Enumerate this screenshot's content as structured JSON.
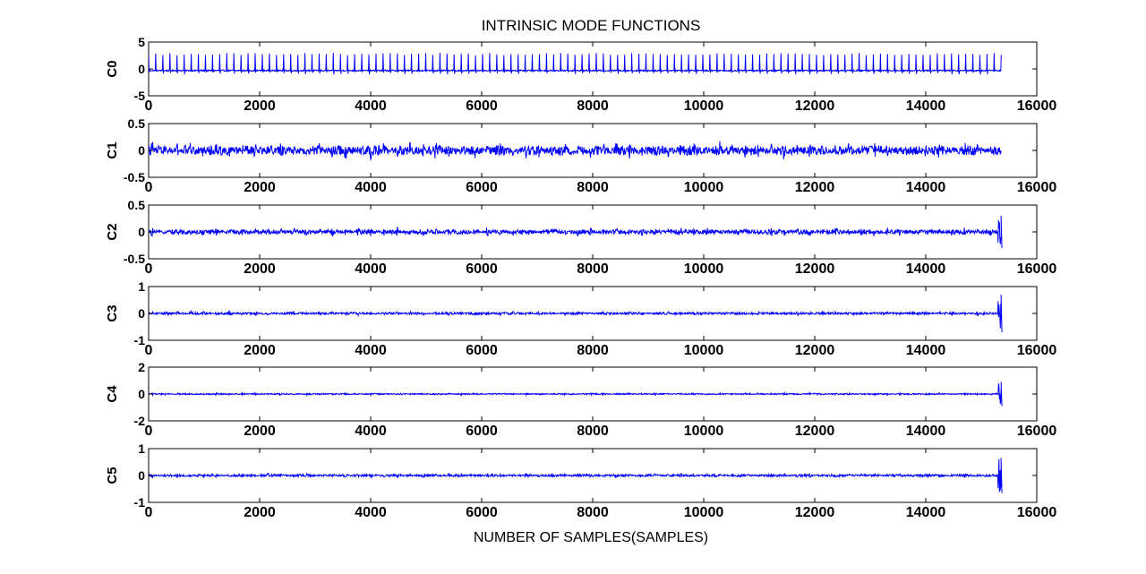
{
  "chart_data": {
    "title": "INTRINSIC MODE FUNCTIONS",
    "xlabel": "NUMBER OF SAMPLES(SAMPLES)",
    "xlim": [
      0,
      16000
    ],
    "xticks": [
      "0",
      "2000",
      "4000",
      "6000",
      "8000",
      "10000",
      "12000",
      "14000",
      "16000"
    ],
    "signal_length": 15360,
    "line_color": "#0000ff",
    "panels": [
      {
        "type": "line",
        "ylabel": "C0",
        "ylim": [
          -5,
          5
        ],
        "yticks": [
          "5",
          "0",
          "-5"
        ],
        "series": [
          {
            "values": []
          }
        ],
        "pattern": {
          "kind": "spikes",
          "baseline": -0.3,
          "spike_peak": 3.0,
          "spike_trough": -1.0,
          "spike_spacing": 128
        }
      },
      {
        "type": "line",
        "ylabel": "C1",
        "ylim": [
          -0.5,
          0.5
        ],
        "yticks": [
          "0.5",
          "0",
          "-0.5"
        ],
        "series": [
          {
            "values": []
          }
        ],
        "pattern": {
          "kind": "oscillation",
          "amplitude": 0.1,
          "end_spike": 0.0
        }
      },
      {
        "type": "line",
        "ylabel": "C2",
        "ylim": [
          -0.5,
          0.5
        ],
        "yticks": [
          "0.5",
          "0",
          "-0.5"
        ],
        "series": [
          {
            "values": []
          }
        ],
        "pattern": {
          "kind": "oscillation",
          "amplitude": 0.05,
          "end_spike": 0.3
        }
      },
      {
        "type": "line",
        "ylabel": "C3",
        "ylim": [
          -1,
          1
        ],
        "yticks": [
          "1",
          "0",
          "-1"
        ],
        "series": [
          {
            "values": []
          }
        ],
        "pattern": {
          "kind": "oscillation",
          "amplitude": 0.05,
          "end_spike": 0.7
        }
      },
      {
        "type": "line",
        "ylabel": "C4",
        "ylim": [
          -2,
          2
        ],
        "yticks": [
          "2",
          "0",
          "-2"
        ],
        "series": [
          {
            "values": []
          }
        ],
        "pattern": {
          "kind": "oscillation",
          "amplitude": 0.06,
          "end_spike": 0.9
        }
      },
      {
        "type": "line",
        "ylabel": "C5",
        "ylim": [
          -1,
          1
        ],
        "yticks": [
          "1",
          "0",
          "-1"
        ],
        "series": [
          {
            "values": []
          }
        ],
        "pattern": {
          "kind": "oscillation",
          "amplitude": 0.05,
          "end_spike": 0.65
        }
      }
    ]
  }
}
